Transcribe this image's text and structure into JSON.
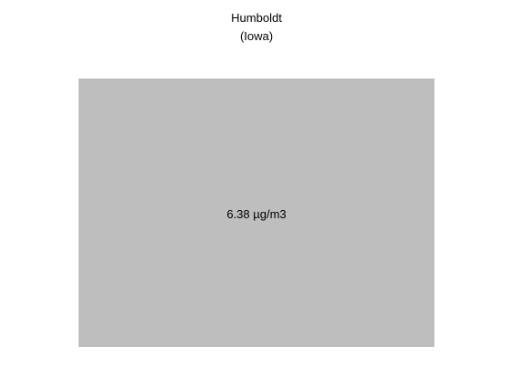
{
  "title": {
    "line1": "Humboldt",
    "line2": "(Iowa)"
  },
  "measurement": {
    "value": 6.38,
    "unit": "µg/m3",
    "label": "6.38 µg/m3"
  },
  "colors": {
    "box_fill": "#bebebe",
    "text": "#000000",
    "background": "#ffffff"
  }
}
